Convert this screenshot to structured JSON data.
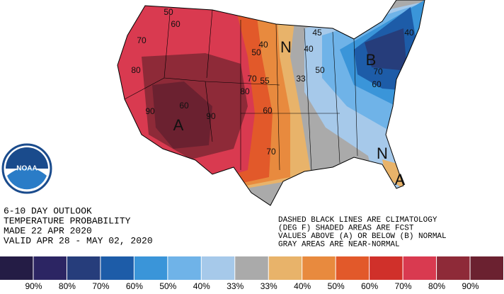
{
  "outlook": {
    "lines": [
      "6-10 DAY OUTLOOK",
      "TEMPERATURE PROBABILITY",
      "MADE  22 APR 2020",
      "VALID  APR 28 - MAY 02, 2020"
    ]
  },
  "notes": {
    "lines": [
      "DASHED BLACK LINES ARE CLIMATOLOGY",
      "(DEG F) SHADED AREAS ARE FCST",
      "VALUES ABOVE (A) OR BELOW (B) NORMAL",
      "GRAY AREAS ARE NEAR-NORMAL"
    ]
  },
  "logo": {
    "text": "NOAA"
  },
  "map": {
    "labels": [
      "50",
      "60",
      "70",
      "80",
      "90",
      "A",
      "60",
      "90",
      "70",
      "80",
      "60",
      "55",
      "50",
      "40",
      "N",
      "45",
      "40",
      "50",
      "33",
      "B",
      "70",
      "60",
      "40",
      "N",
      "70",
      "A"
    ]
  },
  "legend": {
    "colors": [
      "#241c45",
      "#2c2563",
      "#263d7b",
      "#1d5ca8",
      "#3a95d9",
      "#6fb3e8",
      "#a6c9ea",
      "#aaaaaa",
      "#e8b36a",
      "#e88a3e",
      "#e2592a",
      "#d0302a",
      "#d93a50",
      "#8e2a38",
      "#6b2130"
    ],
    "labels": [
      "90%",
      "80%",
      "70%",
      "60%",
      "50%",
      "40%",
      "33%",
      "33%",
      "40%",
      "50%",
      "60%",
      "70%",
      "80%",
      "90%"
    ]
  }
}
